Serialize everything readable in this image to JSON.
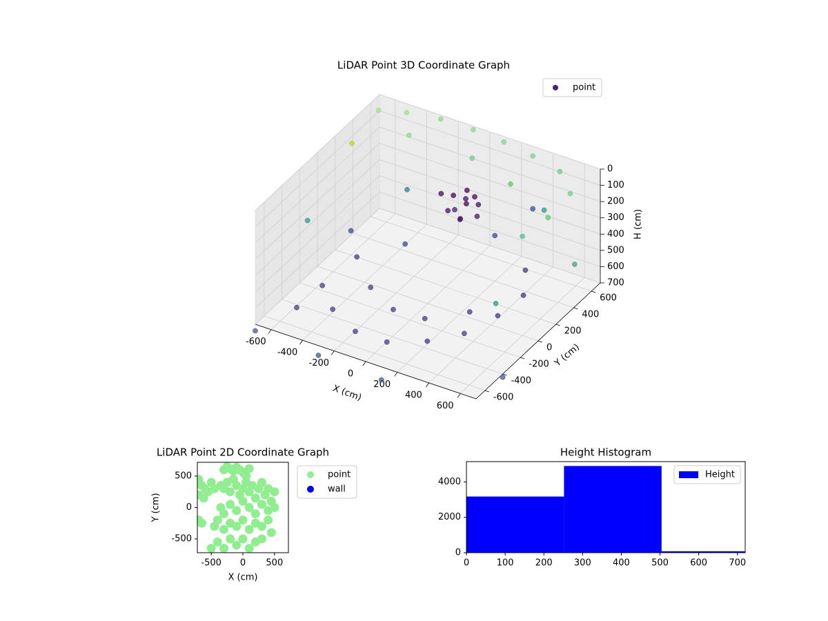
{
  "chart_data": [
    {
      "type": "scatter3d",
      "title": "LiDAR Point 3D Coordinate Graph",
      "xlabel": "X (cm)",
      "ylabel": "Y (cm)",
      "zlabel": "H (cm)",
      "xlim": [
        -700,
        700
      ],
      "ylim": [
        -700,
        700
      ],
      "zlim": [
        0,
        700
      ],
      "z_inverted": true,
      "xticks": [
        -600,
        -400,
        -200,
        0,
        200,
        400,
        600
      ],
      "yticks": [
        -600,
        -400,
        -200,
        0,
        200,
        400,
        600
      ],
      "zticks": [
        0,
        100,
        200,
        300,
        400,
        500,
        600,
        700
      ],
      "legend": "upper right",
      "series": [
        {
          "name": "point",
          "color": "#46256f",
          "x": [
            -650,
            -500,
            -300,
            -100,
            100,
            300,
            500,
            650,
            650,
            -650,
            -400,
            0,
            300,
            600,
            -650,
            600,
            -300,
            400,
            0,
            50,
            100,
            150,
            200,
            80,
            120,
            180,
            30,
            160,
            60,
            140,
            -500,
            -350,
            -150,
            50,
            250,
            400,
            500,
            550,
            450,
            -450,
            -250,
            -50,
            150,
            350,
            -600,
            -550,
            -200,
            200,
            -700,
            -300,
            100,
            700,
            650,
            300
          ],
          "y": [
            600,
            650,
            680,
            690,
            680,
            650,
            600,
            450,
            200,
            300,
            500,
            500,
            400,
            0,
            -200,
            -300,
            300,
            600,
            150,
            200,
            250,
            100,
            200,
            300,
            150,
            250,
            250,
            150,
            120,
            280,
            -300,
            -450,
            -550,
            -550,
            -450,
            -300,
            -100,
            100,
            300,
            0,
            -200,
            -300,
            -300,
            -150,
            200,
            -500,
            100,
            400,
            -700,
            -700,
            -700,
            -400,
            500,
            650
          ],
          "h": [
            30,
            20,
            10,
            15,
            20,
            25,
            30,
            40,
            60,
            80,
            50,
            60,
            70,
            90,
            300,
            350,
            250,
            300,
            100,
            120,
            150,
            180,
            200,
            130,
            220,
            160,
            240,
            110,
            170,
            140,
            600,
            620,
            640,
            640,
            620,
            600,
            560,
            520,
            500,
            560,
            580,
            600,
            590,
            560,
            550,
            650,
            450,
            420,
            740,
            760,
            780,
            720,
            500,
            350
          ],
          "colors": [
            "#9fdf8c",
            "#9fdf8c",
            "#8ed88e",
            "#8ed88e",
            "#7fd38f",
            "#7fd38f",
            "#6ccf8c",
            "#6ccf8c",
            "#5ec962",
            "#aadc32",
            "#8ed88e",
            "#6ccf8c",
            "#5ec962",
            "#4fc18a",
            "#2a9a8a",
            "#2a9a8a",
            "#31848d",
            "#2a9a8a",
            "#46085c",
            "#46085c",
            "#47106a",
            "#47106a",
            "#471870",
            "#46085c",
            "#471870",
            "#47106a",
            "#472070",
            "#46085c",
            "#47106a",
            "#46085c",
            "#433e85",
            "#433e85",
            "#433e85",
            "#433e85",
            "#433e85",
            "#433e85",
            "#453680",
            "#453680",
            "#453680",
            "#433e85",
            "#433e85",
            "#433e85",
            "#433e85",
            "#453680",
            "#3e4c8a",
            "#433e85",
            "#3e4c8a",
            "#3e4c8a",
            "#3d5a8a",
            "#3d5a8a",
            "#38628c",
            "#3d5a8a",
            "#46a28a",
            "#3e4c8a"
          ]
        }
      ]
    },
    {
      "type": "scatter",
      "title": "LiDAR Point 2D Coordinate Graph",
      "xlabel": "X (cm)",
      "ylabel": "Y (cm)",
      "xlim": [
        -720,
        720
      ],
      "ylim": [
        -720,
        720
      ],
      "xticks": [
        -500,
        0,
        500
      ],
      "yticks": [
        -500,
        0,
        500
      ],
      "legend": "outside right",
      "series": [
        {
          "name": "point",
          "color": "#90ee90",
          "x": [
            -700,
            -650,
            -600,
            -550,
            -500,
            -450,
            -700,
            -620,
            -560,
            -300,
            -250,
            -200,
            -150,
            -100,
            -50,
            0,
            50,
            100,
            -350,
            -300,
            -250,
            -200,
            -150,
            -100,
            -50,
            0,
            50,
            100,
            150,
            200,
            250,
            300,
            350,
            400,
            450,
            500,
            -350,
            -300,
            -200,
            -100,
            0,
            100,
            200,
            300,
            400,
            500,
            -450,
            -400,
            -300,
            -200,
            -100,
            0,
            100,
            200,
            300,
            400,
            -500,
            -400,
            -300,
            -200,
            -100,
            0,
            100,
            200,
            300,
            450,
            -700,
            -650
          ],
          "y": [
            450,
            350,
            300,
            250,
            400,
            300,
            200,
            150,
            250,
            600,
            650,
            620,
            580,
            640,
            600,
            560,
            500,
            620,
            350,
            300,
            400,
            250,
            450,
            350,
            200,
            300,
            400,
            250,
            350,
            150,
            300,
            400,
            200,
            300,
            100,
            250,
            0,
            -100,
            50,
            -50,
            100,
            0,
            -100,
            50,
            -50,
            0,
            -300,
            -200,
            -350,
            -250,
            -300,
            -200,
            -350,
            -250,
            -300,
            -200,
            -650,
            -550,
            -650,
            -500,
            -600,
            -500,
            -650,
            -550,
            -500,
            -400,
            -200,
            -250
          ]
        },
        {
          "name": "wall",
          "color": "#0000ff",
          "x": [],
          "y": []
        }
      ]
    },
    {
      "type": "histogram",
      "title": "Height Histogram",
      "bins": [
        0,
        252,
        504,
        756
      ],
      "counts": [
        3176,
        4902,
        80
      ],
      "color": "#0000ff",
      "name": "Height",
      "xlim": [
        0,
        720
      ],
      "ylim": [
        0,
        5150
      ],
      "xticks": [
        0,
        100,
        200,
        300,
        400,
        500,
        600,
        700
      ],
      "yticks": [
        0,
        2000,
        4000
      ],
      "legend": "upper right"
    }
  ]
}
